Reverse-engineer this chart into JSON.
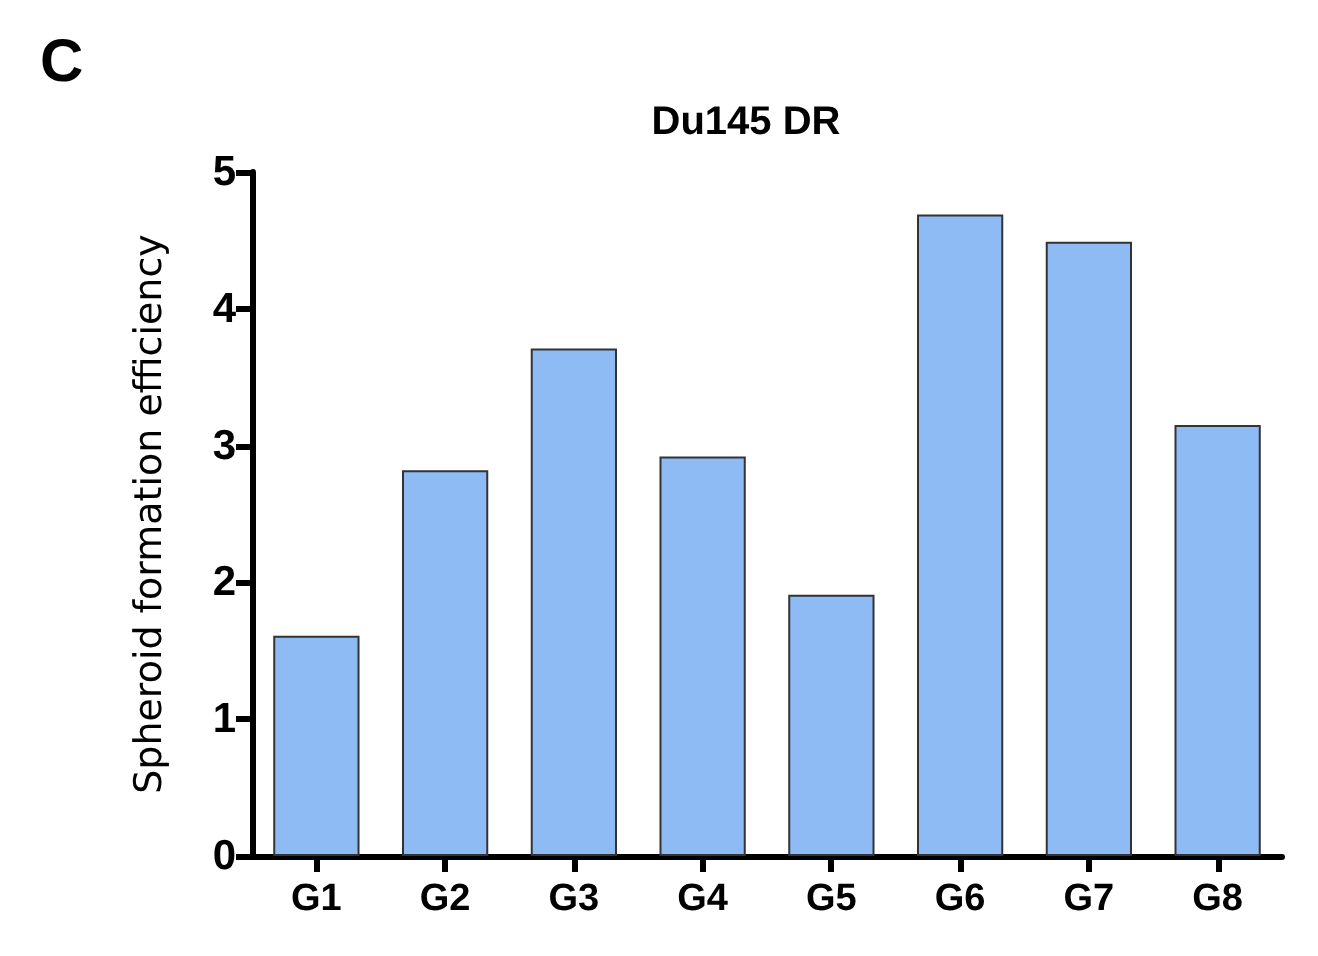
{
  "chart_data": {
    "type": "bar",
    "title": "Du145 DR",
    "ylabel": "Spheroid formation efficiency",
    "annotations": [
      "C"
    ],
    "categories": [
      "G1",
      "G2",
      "G3",
      "G4",
      "G5",
      "G6",
      "G7",
      "G8"
    ],
    "values": [
      1.61,
      2.82,
      3.71,
      2.92,
      1.91,
      4.69,
      4.49,
      3.15
    ],
    "color": "#8fbbf5",
    "ylim": [
      0,
      5
    ],
    "yticks": [
      0,
      1,
      2,
      3,
      4,
      5
    ],
    "grid": false
  }
}
